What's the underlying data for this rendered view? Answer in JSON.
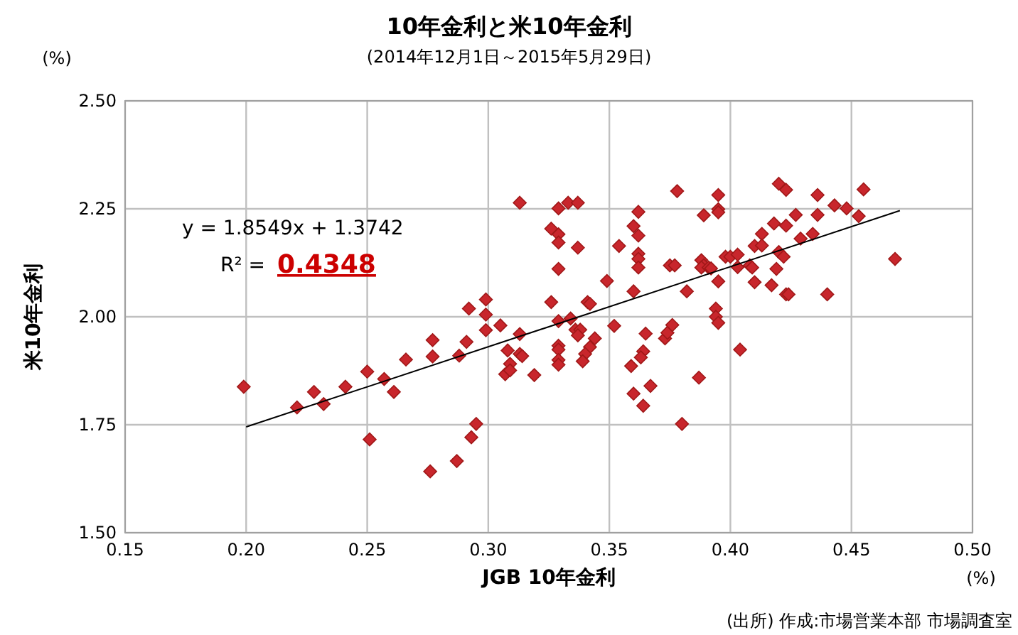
{
  "chart_data": {
    "type": "scatter",
    "title": "10年金利と米10年金利",
    "subtitle": "(2014年12月1日～2015年5月29日)",
    "xlabel": "JGB 10年金利",
    "ylabel": "米10年金利",
    "annotations": [
      "y = 1.8549x + 1.3742",
      "R² =",
      "0.4348",
      "(%)",
      "(%)",
      "(出所) 作成:市場営業本部 市場調査室"
    ],
    "xlim": [
      0.15,
      0.5
    ],
    "ylim": [
      1.5,
      2.5
    ],
    "xticks": [
      {
        "value": 0.15,
        "label": "0.15"
      },
      {
        "value": 0.2,
        "label": "0.20"
      },
      {
        "value": 0.25,
        "label": "0.25"
      },
      {
        "value": 0.3,
        "label": "0.30"
      },
      {
        "value": 0.35,
        "label": "0.35"
      },
      {
        "value": 0.4,
        "label": "0.40"
      },
      {
        "value": 0.45,
        "label": "0.45"
      },
      {
        "value": 0.5,
        "label": "0.50"
      }
    ],
    "yticks": [
      {
        "value": 1.5,
        "label": "1.50"
      },
      {
        "value": 1.75,
        "label": "1.75"
      },
      {
        "value": 2.0,
        "label": "2.00"
      },
      {
        "value": 2.25,
        "label": "2.25"
      },
      {
        "value": 2.5,
        "label": "2.50"
      }
    ],
    "grid": true,
    "series": [
      {
        "marker": "diamond",
        "color": "#c8262c",
        "x": [
          0.199,
          0.221,
          0.228,
          0.232,
          0.241,
          0.25,
          0.257,
          0.261,
          0.251,
          0.266,
          0.277,
          0.277,
          0.288,
          0.291,
          0.292,
          0.299,
          0.299,
          0.299,
          0.295,
          0.293,
          0.287,
          0.276,
          0.305,
          0.308,
          0.309,
          0.307,
          0.309,
          0.313,
          0.314,
          0.313,
          0.313,
          0.319,
          0.326,
          0.326,
          0.329,
          0.329,
          0.329,
          0.329,
          0.329,
          0.329,
          0.329,
          0.329,
          0.329,
          0.333,
          0.337,
          0.337,
          0.334,
          0.336,
          0.338,
          0.337,
          0.344,
          0.342,
          0.34,
          0.339,
          0.341,
          0.342,
          0.349,
          0.352,
          0.354,
          0.36,
          0.362,
          0.362,
          0.362,
          0.362,
          0.362,
          0.36,
          0.365,
          0.364,
          0.363,
          0.359,
          0.367,
          0.36,
          0.364,
          0.373,
          0.374,
          0.376,
          0.378,
          0.375,
          0.377,
          0.382,
          0.38,
          0.387,
          0.389,
          0.388,
          0.389,
          0.388,
          0.391,
          0.392,
          0.395,
          0.395,
          0.395,
          0.395,
          0.394,
          0.394,
          0.395,
          0.398,
          0.4,
          0.403,
          0.403,
          0.404,
          0.408,
          0.409,
          0.41,
          0.41,
          0.413,
          0.413,
          0.417,
          0.418,
          0.419,
          0.42,
          0.423,
          0.423,
          0.42,
          0.422,
          0.423,
          0.424,
          0.427,
          0.429,
          0.434,
          0.436,
          0.436,
          0.44,
          0.443,
          0.448,
          0.455,
          0.453,
          0.468
        ],
        "values": [
          1.838,
          1.79,
          1.826,
          1.798,
          1.838,
          1.873,
          1.856,
          1.826,
          1.716,
          1.901,
          1.946,
          1.908,
          1.91,
          1.942,
          2.019,
          2.04,
          2.005,
          1.969,
          1.752,
          1.721,
          1.666,
          1.642,
          1.98,
          1.922,
          1.891,
          1.867,
          1.876,
          1.914,
          1.909,
          1.96,
          2.264,
          1.865,
          2.204,
          2.034,
          2.191,
          2.172,
          2.111,
          1.99,
          1.933,
          1.924,
          1.9,
          1.889,
          2.251,
          2.264,
          2.264,
          2.16,
          1.996,
          1.97,
          1.97,
          1.957,
          1.95,
          1.93,
          1.914,
          1.897,
          2.034,
          2.03,
          2.083,
          1.979,
          2.164,
          2.21,
          2.243,
          2.188,
          2.146,
          2.134,
          2.114,
          2.059,
          1.961,
          1.92,
          1.906,
          1.886,
          1.84,
          1.822,
          1.794,
          1.95,
          1.963,
          1.981,
          2.291,
          2.119,
          2.119,
          2.059,
          1.752,
          1.859,
          2.235,
          2.131,
          2.119,
          2.114,
          2.114,
          2.112,
          2.282,
          2.249,
          2.242,
          2.082,
          2.019,
          2.0,
          1.986,
          2.139,
          2.139,
          2.144,
          2.115,
          1.924,
          2.119,
          2.114,
          2.08,
          2.164,
          2.192,
          2.165,
          2.073,
          2.216,
          2.111,
          2.308,
          2.294,
          2.211,
          2.15,
          2.139,
          2.052,
          2.052,
          2.236,
          2.181,
          2.192,
          2.282,
          2.236,
          2.052,
          2.258,
          2.251,
          2.295,
          2.233,
          2.134
        ]
      },
      {
        "type": "line",
        "color": "#000000",
        "line_style": "solid",
        "x": [
          0.2,
          0.47
        ],
        "values": [
          1.745,
          2.246
        ]
      }
    ]
  }
}
